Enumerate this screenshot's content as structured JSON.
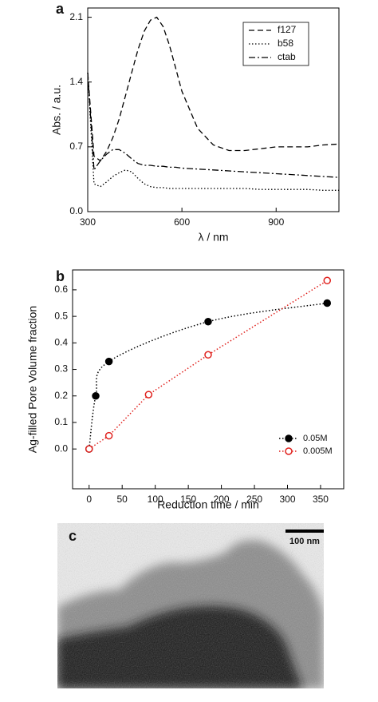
{
  "chart_data": [
    {
      "type": "line",
      "label": "a",
      "xlabel": "λ / nm",
      "ylabel": "Abs. / a.u.",
      "x": [
        300,
        320,
        340,
        360,
        380,
        400,
        420,
        440,
        460,
        480,
        500,
        520,
        540,
        560,
        580,
        600,
        650,
        700,
        750,
        800,
        850,
        900,
        950,
        1000,
        1050,
        1100
      ],
      "series": [
        {
          "name": "f127",
          "color": "#000000",
          "dash": "dashed",
          "values": [
            1.5,
            0.6,
            0.55,
            0.65,
            0.8,
            1.0,
            1.25,
            1.5,
            1.75,
            1.95,
            2.07,
            2.1,
            2.0,
            1.8,
            1.55,
            1.3,
            0.9,
            0.72,
            0.66,
            0.66,
            0.68,
            0.7,
            0.7,
            0.7,
            0.72,
            0.73
          ]
        },
        {
          "name": "b58",
          "color": "#000000",
          "dash": "dotted",
          "values": [
            1.5,
            0.3,
            0.27,
            0.32,
            0.38,
            0.42,
            0.45,
            0.43,
            0.36,
            0.3,
            0.27,
            0.26,
            0.26,
            0.25,
            0.25,
            0.25,
            0.25,
            0.25,
            0.25,
            0.25,
            0.24,
            0.24,
            0.24,
            0.24,
            0.23,
            0.23
          ]
        },
        {
          "name": "ctab",
          "color": "#000000",
          "dash": "dashdot",
          "values": [
            1.5,
            0.45,
            0.55,
            0.62,
            0.67,
            0.67,
            0.63,
            0.57,
            0.52,
            0.5,
            0.5,
            0.49,
            0.49,
            0.48,
            0.48,
            0.47,
            0.46,
            0.45,
            0.44,
            0.43,
            0.42,
            0.41,
            0.4,
            0.39,
            0.38,
            0.37
          ]
        }
      ],
      "xlim": [
        300,
        1100
      ],
      "xticks": [
        300,
        600,
        900
      ],
      "ylim": [
        0,
        2.2
      ],
      "yticks": [
        {
          "value": 0,
          "label": "0.0"
        },
        0.7,
        1.4,
        2.1
      ],
      "legend": "upper right"
    },
    {
      "type": "scatter",
      "label": "b",
      "xlabel": "Reduction time / min",
      "ylabel": "Ag-filled Pore Volume fraction",
      "series": [
        {
          "name": "0.05M",
          "color": "#000000",
          "marker": "filled",
          "curve": "smooth",
          "x": [
            0,
            10,
            30,
            180,
            360
          ],
          "values": [
            0,
            0.2,
            0.33,
            0.48,
            0.55
          ]
        },
        {
          "name": "0.005M",
          "color": "#e0201c",
          "marker": "open",
          "curve": "straight",
          "x": [
            0,
            30,
            90,
            180,
            360
          ],
          "values": [
            0,
            0.05,
            0.205,
            0.355,
            0.635
          ]
        }
      ],
      "xlim": [
        -25,
        385
      ],
      "xticks": [
        0,
        50,
        100,
        150,
        200,
        250,
        300,
        350
      ],
      "ylim": [
        -0.15,
        0.675
      ],
      "yticks": [
        {
          "value": 0,
          "label": "0.0"
        },
        0.1,
        0.2,
        0.3,
        0.4,
        0.5,
        0.6
      ],
      "legend": "lower right"
    },
    {
      "type": "image",
      "label": "c",
      "scale_bar": "100 nm"
    }
  ]
}
